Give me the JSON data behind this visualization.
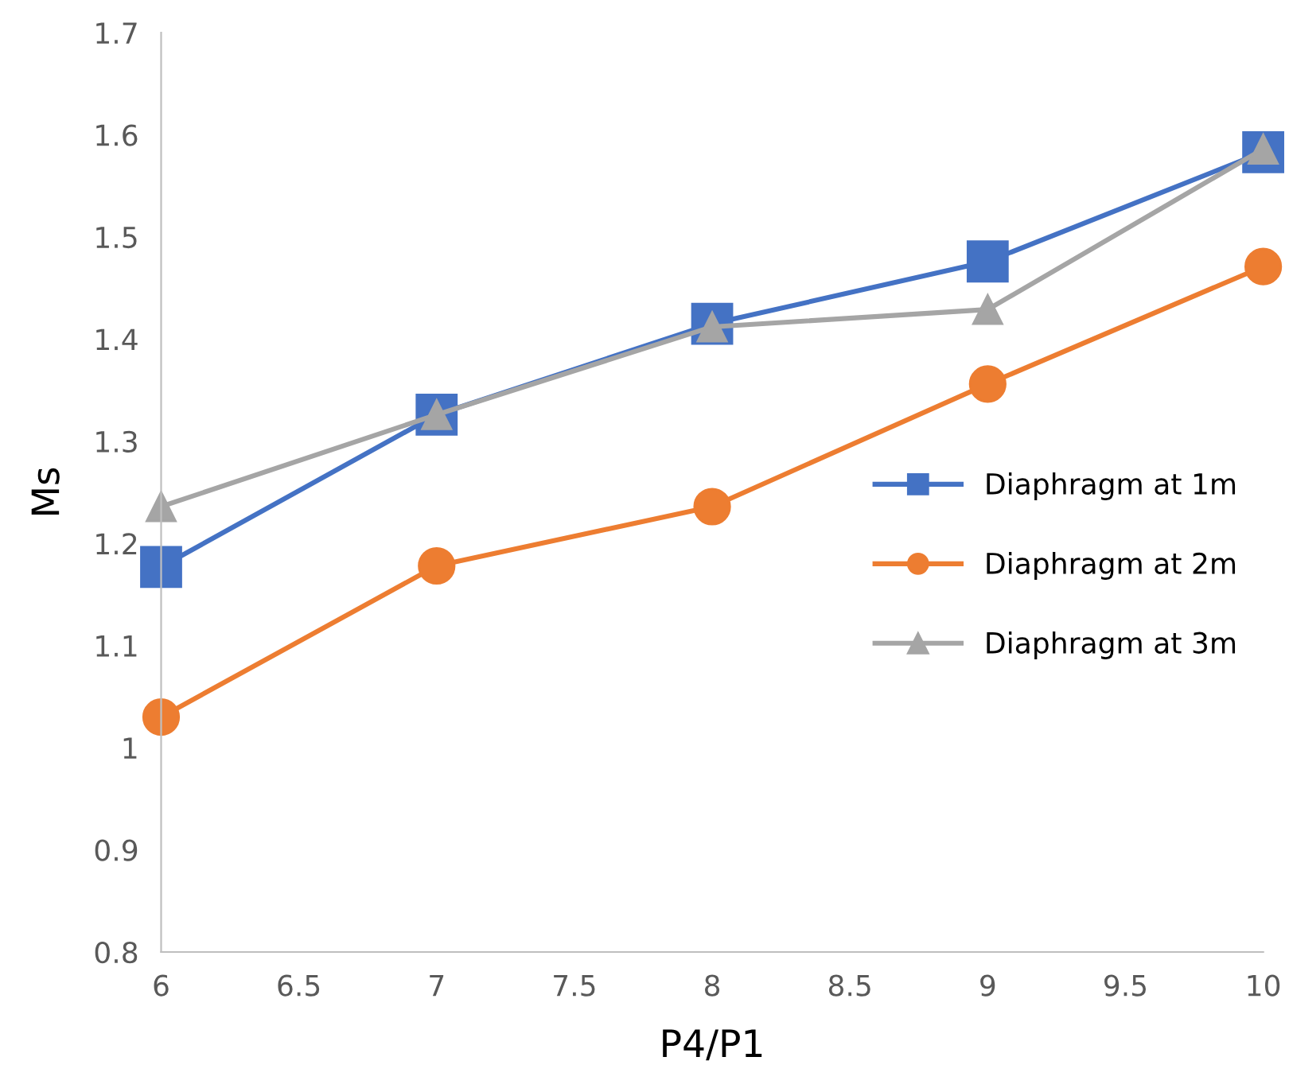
{
  "chart_data": {
    "type": "line",
    "xlabel": "P4/P1",
    "ylabel": "Ms",
    "x": [
      6,
      7,
      8,
      9,
      10
    ],
    "series": [
      {
        "name": "Diaphragm at 1m",
        "color": "#4472c4",
        "marker": "square",
        "values": [
          1.177,
          1.326,
          1.415,
          1.476,
          1.583
        ]
      },
      {
        "name": "Diaphragm at 2m",
        "color": "#ed7d31",
        "marker": "circle",
        "values": [
          1.03,
          1.178,
          1.236,
          1.356,
          1.471
        ]
      },
      {
        "name": "Diaphragm at 3m",
        "color": "#a5a5a5",
        "marker": "triangle",
        "values": [
          1.236,
          1.326,
          1.412,
          1.429,
          1.586
        ]
      }
    ],
    "xlim": [
      6,
      10
    ],
    "ylim": [
      0.8,
      1.7
    ],
    "xticks": [
      6,
      6.5,
      7,
      7.5,
      8,
      8.5,
      9,
      9.5,
      10
    ],
    "yticks": [
      0.8,
      0.9,
      1,
      1.1,
      1.2,
      1.3,
      1.4,
      1.5,
      1.6,
      1.7
    ],
    "grid": false,
    "legend": "right",
    "line_style": "solid"
  }
}
